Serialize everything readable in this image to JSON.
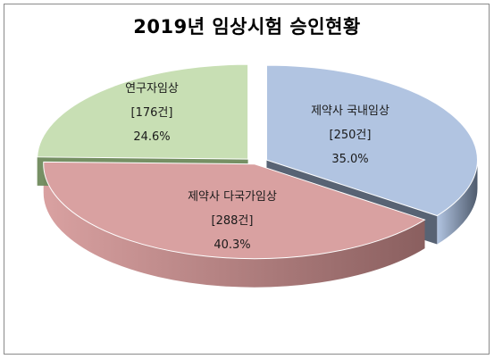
{
  "chart_data": {
    "type": "pie",
    "title": "2019년 임상시험 승인현황",
    "slices": [
      {
        "name": "제약사 국내임상",
        "count_label": "[250건]",
        "percent_label": "35.0%",
        "value": 250,
        "percent": 35.0,
        "color": "#b1c4e1",
        "side_color": "#4f5b6d"
      },
      {
        "name": "제약사 다국가임상",
        "count_label": "[288건]",
        "percent_label": "40.3%",
        "value": 288,
        "percent": 40.3,
        "color": "#d9a1a1",
        "side_color": "#8a5f5f"
      },
      {
        "name": "연구자임상",
        "count_label": "[176건]",
        "percent_label": "24.6%",
        "value": 176,
        "percent": 24.6,
        "color": "#c8dfb4",
        "side_color": "#6f8a5c"
      }
    ],
    "legend": "none",
    "style": "3d-exploded"
  }
}
